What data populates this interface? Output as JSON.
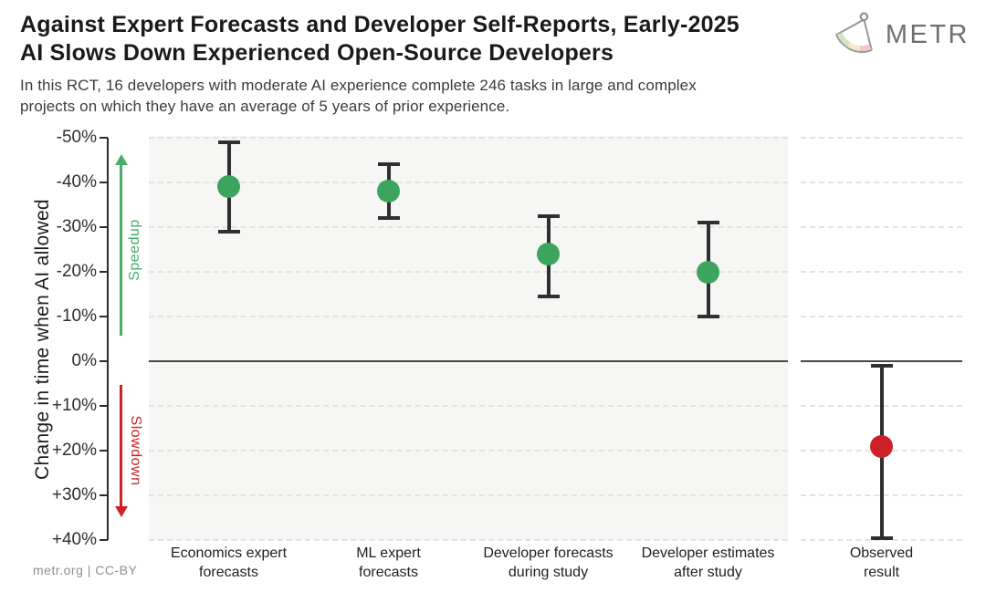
{
  "logo": {
    "text": "METR",
    "icon": "metr-fan-icon"
  },
  "footer": {
    "text": "metr.org  |  CC-BY"
  },
  "colors": {
    "speedup_green": "#3CA45C",
    "slowdown_red": "#CB2127",
    "arrow_green": "#47AD68",
    "arrow_red": "#CE2227",
    "panel_gray": "#f6f6f5"
  },
  "chart_data": {
    "type": "scatter",
    "title_lines": [
      "Against Expert Forecasts and Developer Self-Reports, Early-2025",
      "AI Slows Down Experienced Open-Source Developers"
    ],
    "subtitle_lines": [
      "In this RCT, 16 developers with moderate AI experience complete 246 tasks in large and complex",
      "projects on which they have an average of 5 years of prior experience."
    ],
    "ylabel": "Change in time when AI allowed",
    "xlabel": "",
    "ylim": [
      -50,
      40
    ],
    "y_inverted_axis": true,
    "grid": "horizontal-dashed",
    "zero_line": true,
    "y_ticks": [
      {
        "value": -50,
        "label": "-50%"
      },
      {
        "value": -40,
        "label": "-40%"
      },
      {
        "value": -30,
        "label": "-30%"
      },
      {
        "value": -20,
        "label": "-20%"
      },
      {
        "value": -10,
        "label": "-10%"
      },
      {
        "value": 0,
        "label": "0%"
      },
      {
        "value": 10,
        "label": "+10%"
      },
      {
        "value": 20,
        "label": "+20%"
      },
      {
        "value": 30,
        "label": "+30%"
      },
      {
        "value": 40,
        "label": "+40%"
      }
    ],
    "annotations": [
      {
        "text": "Speedup",
        "direction": "up",
        "color": "#47AD68"
      },
      {
        "text": "Slowdown",
        "direction": "down",
        "color": "#CE2227"
      }
    ],
    "points": [
      {
        "label_lines": [
          "Economics expert",
          "forecasts"
        ],
        "value": -39,
        "ci": [
          -49,
          -29
        ],
        "color": "#3CA45C",
        "panel": "main"
      },
      {
        "label_lines": [
          "ML expert",
          "forecasts"
        ],
        "value": -38,
        "ci": [
          -44,
          -32
        ],
        "color": "#3CA45C",
        "panel": "main"
      },
      {
        "label_lines": [
          "Developer forecasts",
          "during study"
        ],
        "value": -24,
        "ci": [
          -32.5,
          -14.5
        ],
        "color": "#3CA45C",
        "panel": "main"
      },
      {
        "label_lines": [
          "Developer estimates",
          "after study"
        ],
        "value": -20,
        "ci": [
          -31,
          -10
        ],
        "color": "#3CA45C",
        "panel": "main"
      },
      {
        "label_lines": [
          "Observed",
          "result"
        ],
        "value": 19,
        "ci": [
          1,
          39.5
        ],
        "color": "#CB2127",
        "panel": "observed"
      }
    ]
  }
}
